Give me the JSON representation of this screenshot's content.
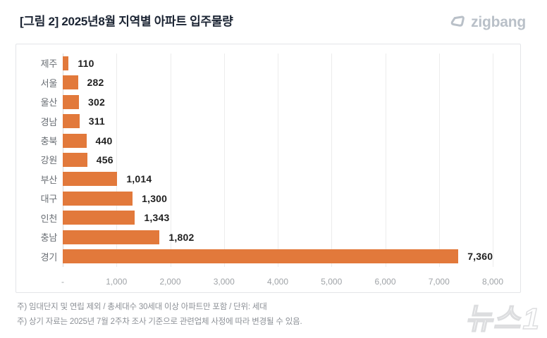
{
  "header": {
    "title": "[그림 2] 2025년8월 지역별 아파트 입주물량",
    "logo_text": "zigbang",
    "logo_color": "#b9c0c8"
  },
  "chart_data": {
    "type": "bar",
    "orientation": "horizontal",
    "title": "[그림 2] 2025년8월 지역별 아파트 입주물량",
    "categories": [
      "제주",
      "서울",
      "울산",
      "경남",
      "충북",
      "강원",
      "부산",
      "대구",
      "인천",
      "충남",
      "경기"
    ],
    "values": [
      110,
      282,
      302,
      311,
      440,
      456,
      1014,
      1300,
      1343,
      1802,
      7360
    ],
    "value_labels": [
      "110",
      "282",
      "302",
      "311",
      "440",
      "456",
      "1,014",
      "1,300",
      "1,343",
      "1,802",
      "7,360"
    ],
    "xlabel": "",
    "ylabel": "",
    "xlim": [
      0,
      8000
    ],
    "x_ticks": [
      "-",
      "1,000",
      "2,000",
      "3,000",
      "4,000",
      "5,000",
      "6,000",
      "7,000",
      "8,000"
    ],
    "grid": true,
    "legend": "none",
    "bar_color": "#e2793b",
    "unit": "세대"
  },
  "footnotes": [
    "주) 임대단지 및 연립 제외 / 총세대수 30세대 이상 아파트만 포함 / 단위: 세대",
    "주) 상기 자료는 2025년 7월 2주차 조사 기준으로 관련업체 사정에 따라 변경될 수 있음."
  ],
  "watermark": {
    "text": "뉴스1"
  }
}
